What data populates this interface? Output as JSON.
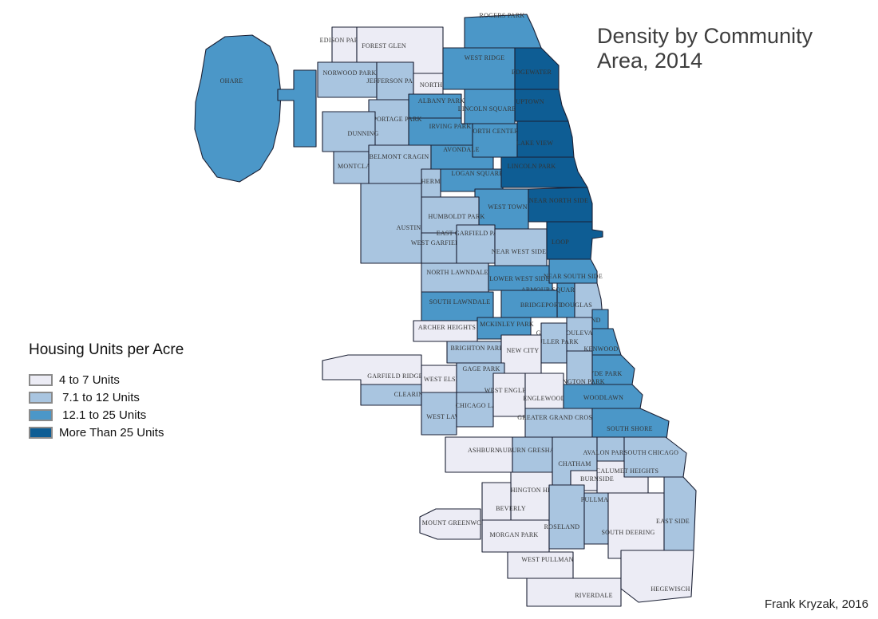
{
  "title": {
    "line1": "Density by Community",
    "line2": "Area, 2014"
  },
  "legend": {
    "title": "Housing Units per Acre",
    "items": [
      {
        "label": "4 to 7 Units",
        "color": "#ECECF5"
      },
      {
        "label": " 7.1 to 12 Units",
        "color": "#A9C5E0"
      },
      {
        "label": " 12.1 to 25 Units",
        "color": "#4B97C8"
      },
      {
        "label": "More Than 25 Units",
        "color": "#0E5D94"
      }
    ]
  },
  "attribution": "Frank Kryzak, 2016",
  "chart_data": {
    "type": "choropleth-map",
    "region_set": "Chicago community areas",
    "measure": "Housing Units per Acre",
    "year": "2014",
    "categories": [
      "4 to 7 Units",
      "7.1 to 12 Units",
      "12.1 to 25 Units",
      "More Than 25 Units"
    ],
    "category_colors": [
      "#ECECF5",
      "#A9C5E0",
      "#4B97C8",
      "#0E5D94"
    ],
    "areas": [
      {
        "id": "ohare",
        "name": "OHARE",
        "category": 2
      },
      {
        "id": "edison-park",
        "name": "EDISON PARK",
        "category": 0
      },
      {
        "id": "forest-glen",
        "name": "FOREST GLEN",
        "category": 0
      },
      {
        "id": "norwood-park",
        "name": "NORWOOD PARK",
        "category": 1
      },
      {
        "id": "jefferson-park",
        "name": "JEFFERSON PARK",
        "category": 1
      },
      {
        "id": "north-park",
        "name": "NORTH PARK",
        "category": 0
      },
      {
        "id": "albany-park",
        "name": "ALBANY PARK",
        "category": 2
      },
      {
        "id": "rogers-park",
        "name": "ROGERS PARK",
        "category": 2
      },
      {
        "id": "west-ridge",
        "name": "WEST RIDGE",
        "category": 2
      },
      {
        "id": "edgewater",
        "name": "EDGEWATER",
        "category": 3
      },
      {
        "id": "uptown",
        "name": "UPTOWN",
        "category": 3
      },
      {
        "id": "lincoln-square",
        "name": "LINCOLN SQUARE",
        "category": 2
      },
      {
        "id": "north-center",
        "name": "NORTH CENTER",
        "category": 2
      },
      {
        "id": "lake-view",
        "name": "LAKE VIEW",
        "category": 3
      },
      {
        "id": "irving-park",
        "name": "IRVING PARK",
        "category": 2
      },
      {
        "id": "portage-park",
        "name": "PORTAGE PARK",
        "category": 1
      },
      {
        "id": "dunning",
        "name": "DUNNING",
        "category": 1
      },
      {
        "id": "montclare",
        "name": "MONTCLARE",
        "category": 1
      },
      {
        "id": "belmont-cragin",
        "name": "BELMONT CRAGIN",
        "category": 1
      },
      {
        "id": "hermosa",
        "name": "HERMOSA",
        "category": 1
      },
      {
        "id": "avondale",
        "name": "AVONDALE",
        "category": 2
      },
      {
        "id": "logan-square",
        "name": "LOGAN SQUARE",
        "category": 2
      },
      {
        "id": "lincoln-park",
        "name": "LINCOLN PARK",
        "category": 3
      },
      {
        "id": "west-town",
        "name": "WEST TOWN",
        "category": 2
      },
      {
        "id": "near-north-side",
        "name": "NEAR NORTH SIDE",
        "category": 3
      },
      {
        "id": "humboldt-park",
        "name": "HUMBOLDT PARK",
        "category": 1
      },
      {
        "id": "austin",
        "name": "AUSTIN",
        "category": 1
      },
      {
        "id": "west-garfield-park",
        "name": "WEST GARFIELD PARK",
        "category": 1
      },
      {
        "id": "east-garfield-park",
        "name": "EAST GARFIELD PARK",
        "category": 1
      },
      {
        "id": "near-west-side",
        "name": "NEAR WEST SIDE",
        "category": 1
      },
      {
        "id": "loop",
        "name": "LOOP",
        "category": 3
      },
      {
        "id": "north-lawndale",
        "name": "NORTH LAWNDALE",
        "category": 1
      },
      {
        "id": "lower-west-side",
        "name": "LOWER WEST SIDE",
        "category": 2
      },
      {
        "id": "near-south-side",
        "name": "NEAR SOUTH SIDE",
        "category": 2
      },
      {
        "id": "armour-square",
        "name": "ARMOUR SQUARE",
        "category": 2
      },
      {
        "id": "south-lawndale",
        "name": "SOUTH LAWNDALE",
        "category": 2
      },
      {
        "id": "bridgeport",
        "name": "BRIDGEPORT",
        "category": 2
      },
      {
        "id": "douglas",
        "name": "DOUGLAS",
        "category": 1
      },
      {
        "id": "mckinley-park",
        "name": "MCKINLEY PARK",
        "category": 2
      },
      {
        "id": "oakland",
        "name": "OAKLAND",
        "category": 2
      },
      {
        "id": "grand-boulevard",
        "name": "GRAND BOULEVARD",
        "category": 1
      },
      {
        "id": "fuller-park",
        "name": "FULLER PARK",
        "category": 1
      },
      {
        "id": "kenwood",
        "name": "KENWOOD",
        "category": 2
      },
      {
        "id": "archer-heights",
        "name": "ARCHER HEIGHTS",
        "category": 0
      },
      {
        "id": "brighton-park",
        "name": "BRIGHTON PARK",
        "category": 1
      },
      {
        "id": "new-city",
        "name": "NEW CITY",
        "category": 0
      },
      {
        "id": "hyde-park",
        "name": "HYDE PARK",
        "category": 2
      },
      {
        "id": "washington-park",
        "name": "WASHINGTON PARK",
        "category": 1
      },
      {
        "id": "garfield-ridge",
        "name": "GARFIELD RIDGE",
        "category": 0
      },
      {
        "id": "west-elsdon",
        "name": "WEST ELSDON",
        "category": 0
      },
      {
        "id": "gage-park",
        "name": "GAGE PARK",
        "category": 1
      },
      {
        "id": "clearing",
        "name": "CLEARING",
        "category": 1
      },
      {
        "id": "west-lawn",
        "name": "WEST LAWN",
        "category": 1
      },
      {
        "id": "chicago-lawn",
        "name": "CHICAGO LAWN",
        "category": 1
      },
      {
        "id": "west-englewood",
        "name": "WEST ENGLEWOOD",
        "category": 0
      },
      {
        "id": "englewood",
        "name": "ENGLEWOOD",
        "category": 0
      },
      {
        "id": "woodlawn",
        "name": "WOODLAWN",
        "category": 2
      },
      {
        "id": "greater-grand-crossing",
        "name": "GREATER GRAND CROSSING",
        "category": 1
      },
      {
        "id": "south-shore",
        "name": "SOUTH SHORE",
        "category": 2
      },
      {
        "id": "ashburn",
        "name": "ASHBURN",
        "category": 0
      },
      {
        "id": "auburn-gresham",
        "name": "AUBURN GRESHAM",
        "category": 1
      },
      {
        "id": "chatham",
        "name": "CHATHAM",
        "category": 1
      },
      {
        "id": "avalon-park",
        "name": "AVALON PARK",
        "category": 1
      },
      {
        "id": "south-chicago",
        "name": "SOUTH CHICAGO",
        "category": 1
      },
      {
        "id": "calumet-heights",
        "name": "CALUMET HEIGHTS",
        "category": 0
      },
      {
        "id": "burnside",
        "name": "BURNSIDE",
        "category": 0
      },
      {
        "id": "washington-heights",
        "name": "WASHINGTON HEIGHTS",
        "category": 0
      },
      {
        "id": "beverly",
        "name": "BEVERLY",
        "category": 0
      },
      {
        "id": "mount-greenwood",
        "name": "MOUNT GREENWOOD",
        "category": 0
      },
      {
        "id": "morgan-park",
        "name": "MORGAN PARK",
        "category": 0
      },
      {
        "id": "roseland",
        "name": "ROSELAND",
        "category": 1
      },
      {
        "id": "pullman",
        "name": "PULLMAN",
        "category": 1
      },
      {
        "id": "south-deering",
        "name": "SOUTH DEERING",
        "category": 0
      },
      {
        "id": "east-side",
        "name": "EAST SIDE",
        "category": 1
      },
      {
        "id": "west-pullman",
        "name": "WEST PULLMAN",
        "category": 0
      },
      {
        "id": "riverdale",
        "name": "RIVERDALE",
        "category": 0
      },
      {
        "id": "hegewisch",
        "name": "HEGEWISCH",
        "category": 0
      }
    ]
  }
}
